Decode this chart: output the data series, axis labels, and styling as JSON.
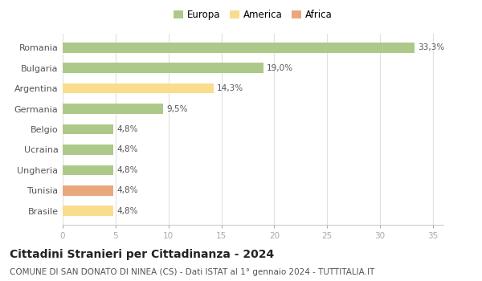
{
  "categories": [
    "Romania",
    "Bulgaria",
    "Argentina",
    "Germania",
    "Belgio",
    "Ucraina",
    "Ungheria",
    "Tunisia",
    "Brasile"
  ],
  "values": [
    33.3,
    19.0,
    14.3,
    9.5,
    4.8,
    4.8,
    4.8,
    4.8,
    4.8
  ],
  "labels": [
    "33,3%",
    "19,0%",
    "14,3%",
    "9,5%",
    "4,8%",
    "4,8%",
    "4,8%",
    "4,8%",
    "4,8%"
  ],
  "colors": [
    "#adc98a",
    "#adc98a",
    "#f9dc8e",
    "#adc98a",
    "#adc98a",
    "#adc98a",
    "#adc98a",
    "#e8a87c",
    "#f9dc8e"
  ],
  "legend_labels": [
    "Europa",
    "America",
    "Africa"
  ],
  "legend_colors": [
    "#adc98a",
    "#f9dc8e",
    "#e8a87c"
  ],
  "xlim": [
    0,
    36
  ],
  "xticks": [
    0,
    5,
    10,
    15,
    20,
    25,
    30,
    35
  ],
  "title": "Cittadini Stranieri per Cittadinanza - 2024",
  "subtitle": "COMUNE DI SAN DONATO DI NINEA (CS) - Dati ISTAT al 1° gennaio 2024 - TUTTITALIA.IT",
  "bg_color": "#ffffff",
  "bar_height": 0.5,
  "title_fontsize": 10,
  "subtitle_fontsize": 7.5,
  "label_fontsize": 7.5,
  "ytick_fontsize": 8,
  "xtick_fontsize": 7.5,
  "legend_fontsize": 8.5
}
